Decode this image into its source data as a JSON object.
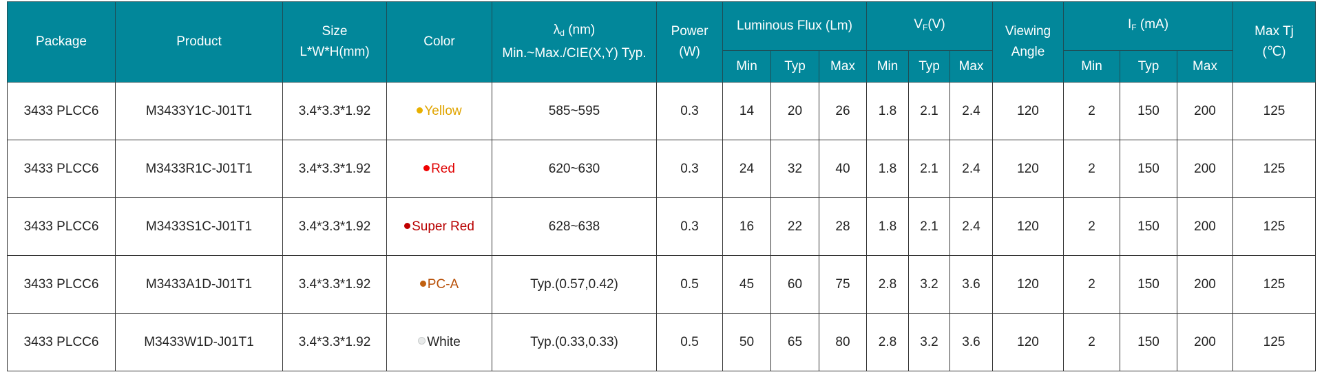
{
  "header": {
    "package": "Package",
    "product": "Product",
    "size_line1": "Size",
    "size_line2": "L*W*H(mm)",
    "color": "Color",
    "lambda_symbol": "λ",
    "lambda_sub": "d",
    "lambda_unit": " (nm)",
    "lambda_line2": "Min.~Max./CIE(X,Y) Typ.",
    "power_line1": "Power",
    "power_line2": "(W)",
    "flux": "Luminous Flux (Lm)",
    "vf_symbol": "V",
    "vf_sub": "F",
    "vf_unit": "(V)",
    "viewing_line1": "Viewing",
    "viewing_line2": "Angle",
    "if_symbol": "I",
    "if_sub": "F",
    "if_unit": " (mA)",
    "tj_line1": "Max Tj",
    "tj_line2": "(℃)",
    "min": "Min",
    "typ": "Typ",
    "max": "Max"
  },
  "header_color": "#02879a",
  "rows": [
    {
      "package": "3433 PLCC6",
      "product": "M3433Y1C-J01T1",
      "size": "3.4*3.3*1.92",
      "color": "Yellow",
      "color_hex": "#e0a400",
      "dot_hex": "#e8b000",
      "lambda": "585~595",
      "power": "0.3",
      "flux": [
        "14",
        "20",
        "26"
      ],
      "vf": [
        "1.8",
        "2.1",
        "2.4"
      ],
      "viewing": "120",
      "if": [
        "2",
        "150",
        "200"
      ],
      "tj": "125"
    },
    {
      "package": "3433 PLCC6",
      "product": "M3433R1C-J01T1",
      "size": "3.4*3.3*1.92",
      "color": "Red",
      "color_hex": "#e00000",
      "dot_hex": "#f00000",
      "lambda": "620~630",
      "power": "0.3",
      "flux": [
        "24",
        "32",
        "40"
      ],
      "vf": [
        "1.8",
        "2.1",
        "2.4"
      ],
      "viewing": "120",
      "if": [
        "2",
        "150",
        "200"
      ],
      "tj": "125"
    },
    {
      "package": "3433 PLCC6",
      "product": "M3433S1C-J01T1",
      "size": "3.4*3.3*1.92",
      "color": "Super Red",
      "color_hex": "#b80000",
      "dot_hex": "#c00000",
      "lambda": "628~638",
      "power": "0.3",
      "flux": [
        "16",
        "22",
        "28"
      ],
      "vf": [
        "1.8",
        "2.1",
        "2.4"
      ],
      "viewing": "120",
      "if": [
        "2",
        "150",
        "200"
      ],
      "tj": "125"
    },
    {
      "package": "3433 PLCC6",
      "product": "M3433A1D-J01T1",
      "size": "3.4*3.3*1.92",
      "color": "PC-A",
      "color_hex": "#b85008",
      "dot_hex": "#c06010",
      "lambda": "Typ.(0.57,0.42)",
      "power": "0.5",
      "flux": [
        "45",
        "60",
        "75"
      ],
      "vf": [
        "2.8",
        "3.2",
        "3.6"
      ],
      "viewing": "120",
      "if": [
        "2",
        "150",
        "200"
      ],
      "tj": "125"
    },
    {
      "package": "3433 PLCC6",
      "product": "M3433W1D-J01T1",
      "size": "3.4*3.3*1.92",
      "color": "White",
      "color_hex": "#222222",
      "dot_hex": "#e8eaea",
      "lambda": "Typ.(0.33,0.33)",
      "power": "0.5",
      "flux": [
        "50",
        "65",
        "80"
      ],
      "vf": [
        "2.8",
        "3.2",
        "3.6"
      ],
      "viewing": "120",
      "if": [
        "2",
        "150",
        "200"
      ],
      "tj": "125"
    }
  ]
}
